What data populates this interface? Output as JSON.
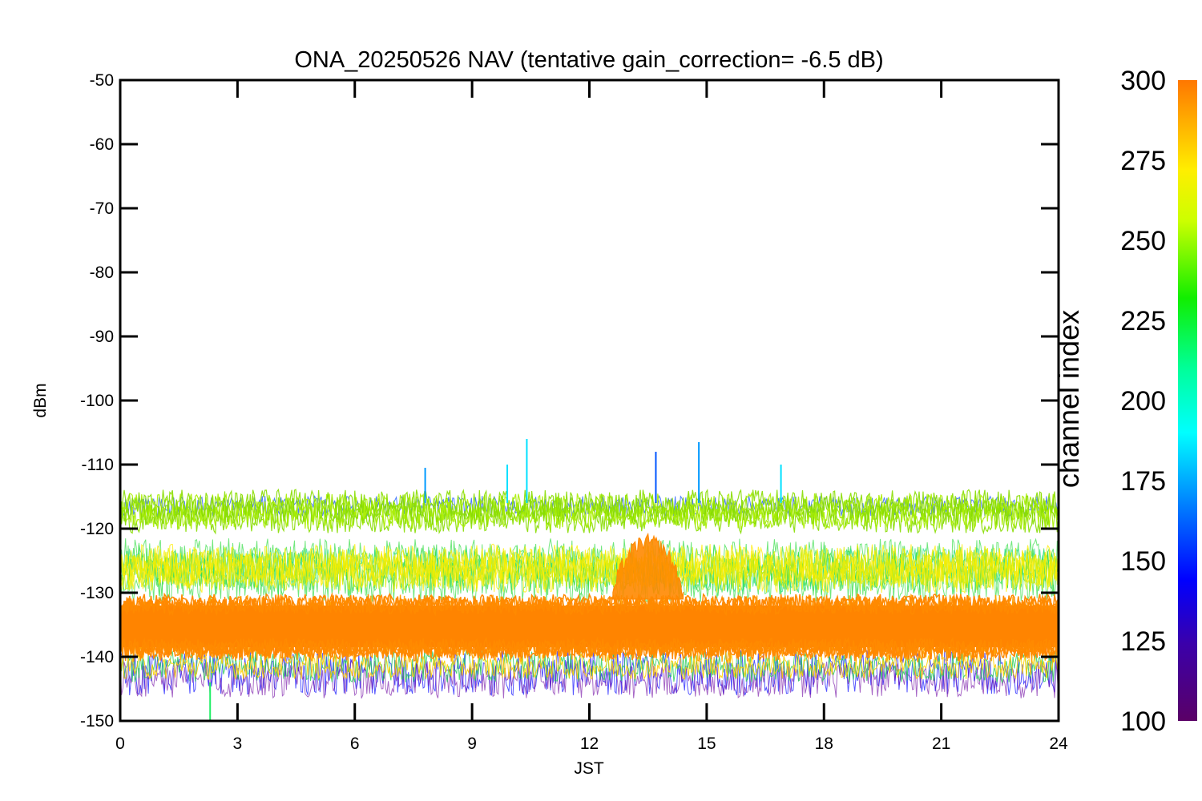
{
  "chart_data": {
    "type": "line",
    "title": "ONA_20250526 NAV (tentative gain_correction= -6.5 dB)",
    "xlabel": "JST",
    "ylabel": "dBm",
    "xlim": [
      0,
      24
    ],
    "ylim": [
      -150,
      -50
    ],
    "x_ticks": [
      "0",
      "3",
      "6",
      "9",
      "12",
      "15",
      "18",
      "21",
      "24"
    ],
    "y_ticks": [
      "-50",
      "-60",
      "-70",
      "-80",
      "-90",
      "-100",
      "-110",
      "-120",
      "-130",
      "-140",
      "-150"
    ],
    "x_tick_values": [
      0,
      3,
      6,
      9,
      12,
      15,
      18,
      21,
      24
    ],
    "y_tick_values": [
      -50,
      -60,
      -70,
      -80,
      -90,
      -100,
      -110,
      -120,
      -130,
      -140,
      -150
    ],
    "colorbar": {
      "title": "channel index",
      "range": [
        100,
        300
      ],
      "ticks": [
        "300",
        "275",
        "250",
        "225",
        "200",
        "175",
        "150",
        "125",
        "100"
      ],
      "tick_values": [
        300,
        275,
        250,
        225,
        200,
        175,
        150,
        125,
        100
      ],
      "colormap": "rainbow (purple → blue → cyan → green → yellow → orange)"
    },
    "series_summary": [
      {
        "channel_index": "~290-300",
        "level_dBm": [
          -141,
          -130
        ],
        "typical_dBm": -135,
        "color": "#ff8800"
      },
      {
        "channel_index": "~270-280",
        "level_dBm": [
          -143,
          -128
        ],
        "color": "#ffcc00"
      },
      {
        "channel_index": "~240-260",
        "level_dBm": [
          -130,
          -115
        ],
        "typical_dBm": -118,
        "color": "#99ee00"
      },
      {
        "channel_index": "~200-230",
        "level_dBm": [
          -130,
          -120
        ],
        "color": "#22dd66"
      },
      {
        "channel_index": "~130-180",
        "level_dBm": [
          -147,
          -115
        ],
        "color": "#1144ff"
      }
    ],
    "spikes": [
      {
        "x": 10.4,
        "y": -106,
        "channel_index": 190
      },
      {
        "x": 13.7,
        "y": -108,
        "channel_index": 150
      },
      {
        "x": 14.8,
        "y": -106.5,
        "channel_index": 180
      },
      {
        "x": 16.9,
        "y": -110,
        "channel_index": 185
      },
      {
        "x": 7.8,
        "y": -110.5,
        "channel_index": 180
      },
      {
        "x": 9.9,
        "y": -110,
        "channel_index": 185
      },
      {
        "x": 2.3,
        "y": -150,
        "channel_index": 210
      }
    ],
    "bump": {
      "x_range": [
        12.6,
        14.4
      ],
      "peak_dBm": -122,
      "color": "#ff8800"
    }
  }
}
